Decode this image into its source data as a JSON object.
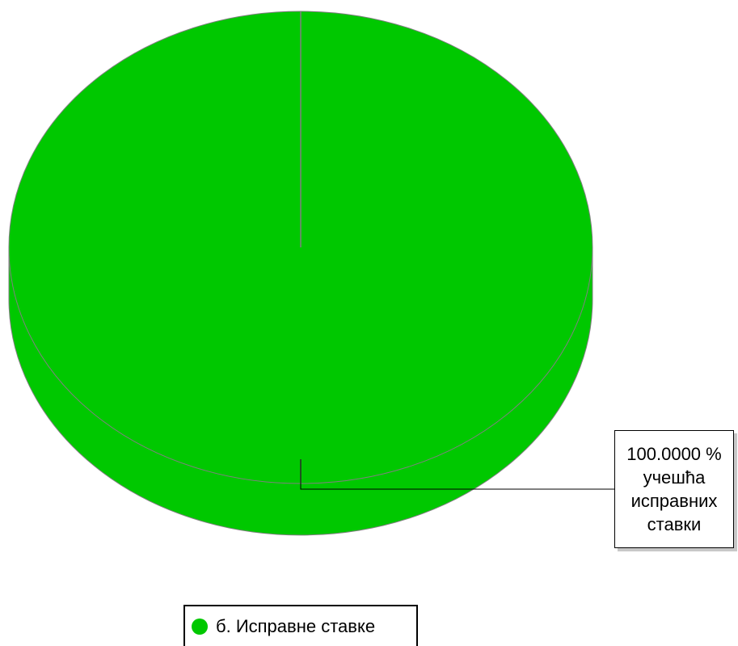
{
  "chart_data": {
    "type": "pie",
    "categories": [
      "б. Исправне ставке"
    ],
    "values": [
      100
    ],
    "value_labels": [
      "100.0000 % учешћа исправних ставки"
    ],
    "colors": [
      "#00c800"
    ],
    "legend": "bottom"
  }
}
